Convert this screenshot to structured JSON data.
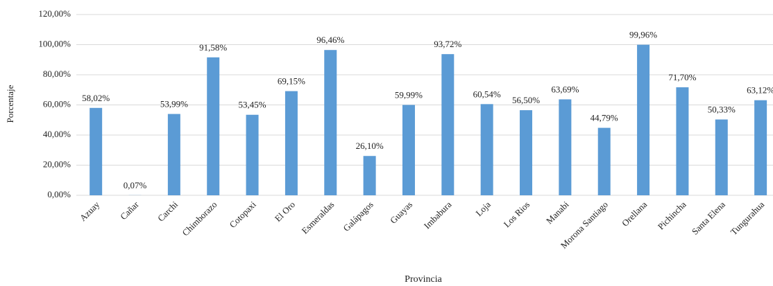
{
  "chart_data": {
    "type": "bar",
    "x_label": "Provincia",
    "y_label": "Porcentaje",
    "categories": [
      "Azuay",
      "Cañar",
      "Carchi",
      "Chimborazo",
      "Cotopaxi",
      "El Oro",
      "Esmeraldas",
      "Galápagos",
      "Guayas",
      "Imbabura",
      "Loja",
      "Los Rios",
      "Manabi",
      "Morona Santiago",
      "Orellana",
      "Pichincha",
      "Santa Elena",
      "Tungurahua"
    ],
    "values": [
      58.02,
      0.07,
      53.99,
      91.58,
      53.45,
      69.15,
      96.46,
      26.1,
      59.99,
      93.72,
      60.54,
      56.5,
      63.69,
      44.79,
      99.96,
      71.7,
      50.33,
      63.12
    ],
    "value_labels": [
      "58,02%",
      "0,07%",
      "53,99%",
      "91,58%",
      "53,45%",
      "69,15%",
      "96,46%",
      "26,10%",
      "59,99%",
      "93,72%",
      "60,54%",
      "56,50%",
      "63,69%",
      "44,79%",
      "99,96%",
      "71,70%",
      "50,33%",
      "63,12%"
    ],
    "color": "#5b9bd5",
    "ylim": [
      0,
      120
    ],
    "yticks": [
      {
        "value": 0,
        "label": "0,00%"
      },
      {
        "value": 20,
        "label": "20,00%"
      },
      {
        "value": 40,
        "label": "40,00%"
      },
      {
        "value": 60,
        "label": "60,00%"
      },
      {
        "value": 80,
        "label": "80,00%"
      },
      {
        "value": 100,
        "label": "100,00%"
      },
      {
        "value": 120,
        "label": "120,00%"
      }
    ],
    "grid": true
  }
}
